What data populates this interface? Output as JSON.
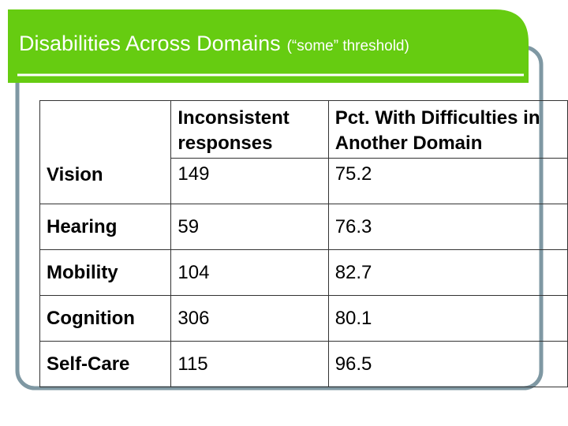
{
  "header": {
    "title": "Disabilities Across Domains",
    "subtitle": "(“some” threshold)"
  },
  "table": {
    "columns": [
      "Inconsistent responses",
      "Pct. With Difficulties in Another Domain"
    ],
    "rows": [
      [
        "Vision",
        149,
        75.2
      ],
      [
        "Hearing",
        59,
        76.3
      ],
      [
        "Mobility",
        104,
        82.7
      ],
      [
        "Cognition",
        306,
        80.1
      ],
      [
        "Self-Care",
        115,
        96.5
      ]
    ]
  }
}
